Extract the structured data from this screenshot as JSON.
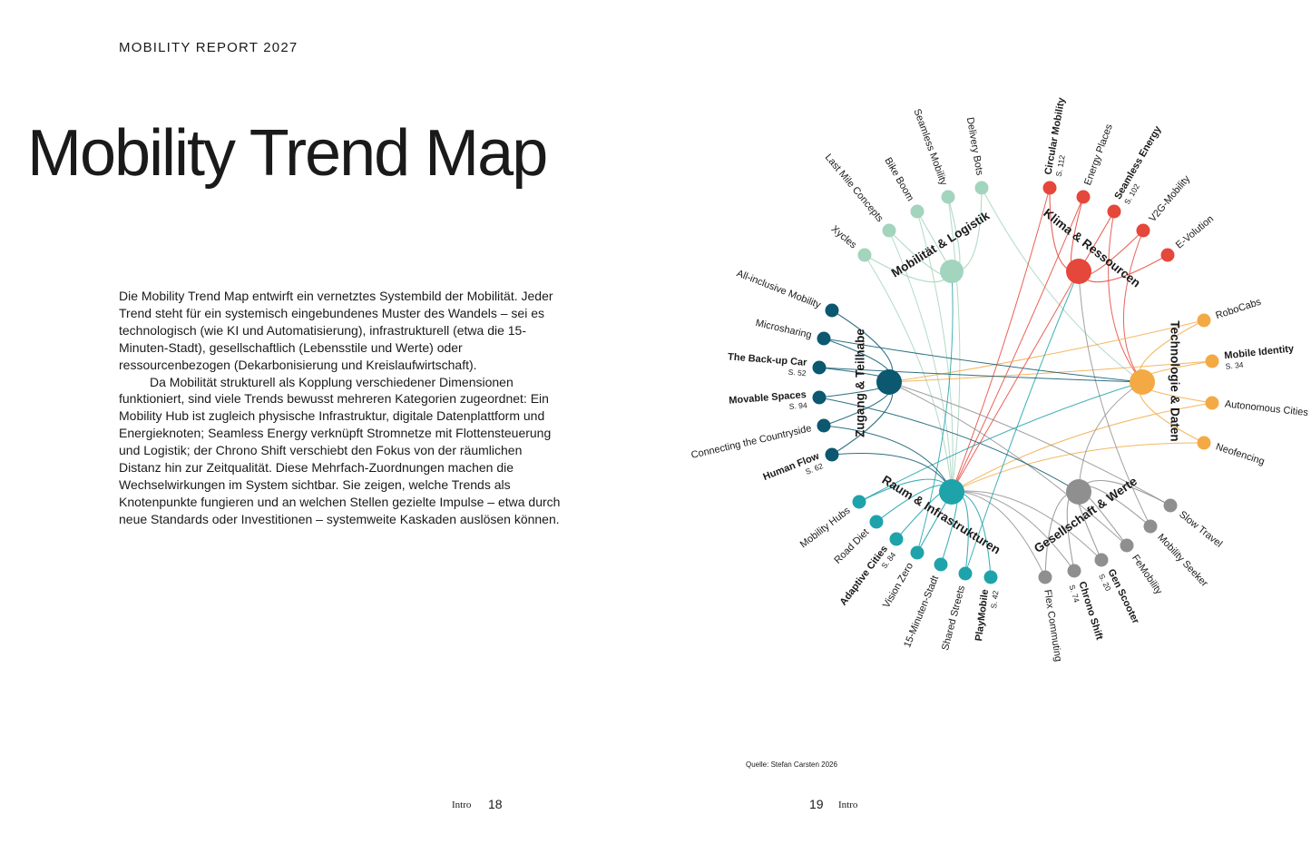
{
  "header": {
    "running_title": "MOBILITY REPORT 2027"
  },
  "title": "Mobility Trend Map",
  "body": {
    "paragraphs": [
      "Die Mobility Trend Map entwirft ein vernetztes Systembild der Mobilität. Jeder Trend steht für ein systemisch eingebundenes Muster des Wandels – sei es technologisch (wie KI und Automatisierung), infrastrukturell (etwa die 15-Minuten-Stadt), gesellschaftlich (Lebensstile und Werte) oder ressourcenbezogen (Dekarbonisierung und Kreislaufwirtschaft).",
      "Da Mobilität strukturell als Kopplung verschiedener Dimensionen funktioniert, sind viele Trends bewusst mehreren Kategorien zugeordnet: Ein Mobility Hub ist zugleich physische Infrastruktur, digitale Datenplattform und Energieknoten; Seamless Energy verknüpft Stromnetze mit Flottensteuerung und Logistik; der Chrono Shift verschiebt den Fokus von der räumlichen Distanz hin zur Zeitqualität. Diese Mehrfach-Zuordnungen machen die Wechselwirkungen im System sichtbar. Sie zeigen, welche Trends als Knotenpunkte fungieren und an welchen Stellen gezielte Impulse – etwa durch neue Standards oder Investitionen – systemweite Kaskaden auslösen können."
    ]
  },
  "diagram": {
    "hubs": [
      {
        "label": "Mobilität & Logistik",
        "color": "#a3d4bd",
        "nodes": [
          {
            "label": "Xycles"
          },
          {
            "label": "Last Mile Concepts"
          },
          {
            "label": "Bike Boom"
          },
          {
            "label": "Seamless Mobility"
          },
          {
            "label": "Delivery Bots"
          }
        ]
      },
      {
        "label": "Klima & Ressourcen",
        "color": "#e5473b",
        "nodes": [
          {
            "label": "Circular Mobility",
            "ref": "S. 112"
          },
          {
            "label": "Energy Places"
          },
          {
            "label": "Seamless Energy",
            "ref": "S. 102"
          },
          {
            "label": "V2G-Mobility"
          },
          {
            "label": "E-Volution"
          }
        ]
      },
      {
        "label": "Technologie & Daten",
        "color": "#f3aa45",
        "nodes": [
          {
            "label": "RoboCabs"
          },
          {
            "label": "Mobile Identity",
            "ref": "S. 34"
          },
          {
            "label": "Autonomous Cities"
          },
          {
            "label": "Neofencing"
          }
        ]
      },
      {
        "label": "Gesellschaft & Werte",
        "color": "#8f8f8f",
        "nodes": [
          {
            "label": "Slow Travel"
          },
          {
            "label": "Mobility Seeker"
          },
          {
            "label": "FeMobility"
          },
          {
            "label": "Gen Scooter",
            "ref": "S. 20"
          },
          {
            "label": "Chrono Shift",
            "ref": "S. 74"
          },
          {
            "label": "Flex Commuting"
          }
        ]
      },
      {
        "label": "Raum & Infrastrukturen",
        "color": "#1ea3aa",
        "nodes": [
          {
            "label": "Mobility Hubs"
          },
          {
            "label": "Road Diet"
          },
          {
            "label": "Adaptive Cities",
            "ref": "S. 84"
          },
          {
            "label": "Vision Zero"
          },
          {
            "label": "15-Minuten-Stadt"
          },
          {
            "label": "Shared Streets"
          },
          {
            "label": "PlayMobile",
            "ref": "S. 42"
          }
        ]
      },
      {
        "label": "Zugang & Teilhabe",
        "color": "#0b5870",
        "nodes": [
          {
            "label": "All-inclusive Mobility"
          },
          {
            "label": "Microsharing"
          },
          {
            "label": "The Back-up Car",
            "ref": "S. 52"
          },
          {
            "label": "Movable Spaces",
            "ref": "S. 94"
          },
          {
            "label": "Connecting the Countryside"
          },
          {
            "label": "Human Flow",
            "ref": "S. 62"
          }
        ]
      }
    ]
  },
  "source": "Quelle: Stefan Carsten 2026",
  "footer": {
    "left": {
      "section": "Intro",
      "page": 18
    },
    "right": {
      "page": 19,
      "section": "Intro"
    }
  }
}
